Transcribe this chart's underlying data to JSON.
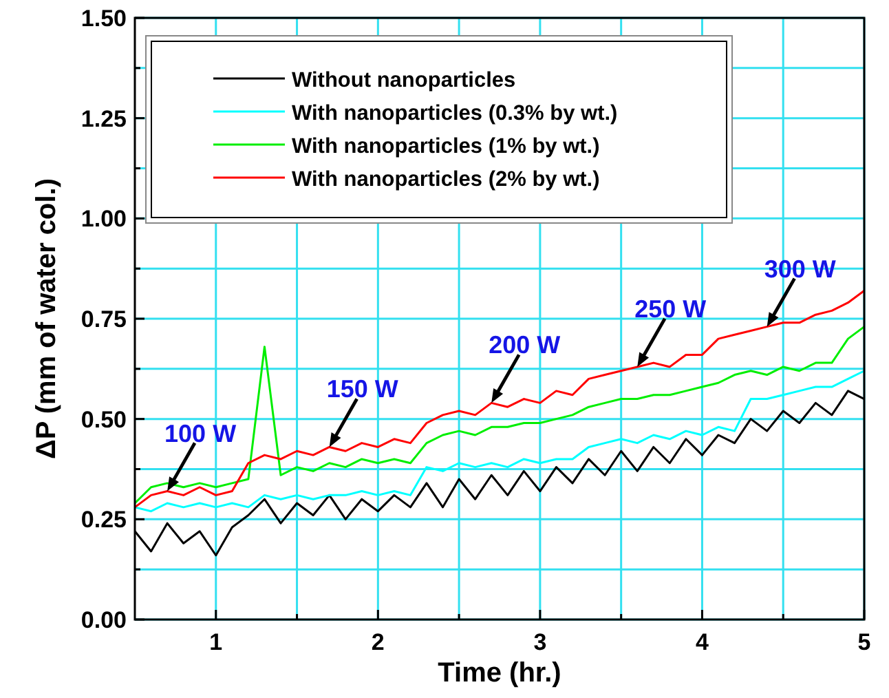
{
  "chart_data": {
    "type": "line",
    "xlabel": "Time (hr.)",
    "ylabel": "ΔP (mm of water col.)",
    "x": [
      0.5,
      0.6,
      0.7,
      0.8,
      0.9,
      1.0,
      1.1,
      1.2,
      1.3,
      1.4,
      1.5,
      1.6,
      1.7,
      1.8,
      1.9,
      2.0,
      2.1,
      2.2,
      2.3,
      2.4,
      2.5,
      2.6,
      2.7,
      2.8,
      2.9,
      3.0,
      3.1,
      3.2,
      3.3,
      3.4,
      3.5,
      3.6,
      3.7,
      3.8,
      3.9,
      4.0,
      4.1,
      4.2,
      4.3,
      4.4,
      4.5,
      4.6,
      4.7,
      4.8,
      4.9,
      5.0
    ],
    "series": [
      {
        "name": "Without nanoparticles",
        "color": "#000000",
        "values": [
          0.22,
          0.17,
          0.24,
          0.19,
          0.22,
          0.16,
          0.23,
          0.26,
          0.3,
          0.24,
          0.29,
          0.26,
          0.31,
          0.25,
          0.3,
          0.27,
          0.31,
          0.28,
          0.34,
          0.28,
          0.35,
          0.3,
          0.36,
          0.31,
          0.37,
          0.32,
          0.38,
          0.34,
          0.4,
          0.36,
          0.42,
          0.37,
          0.43,
          0.39,
          0.45,
          0.41,
          0.46,
          0.44,
          0.5,
          0.47,
          0.52,
          0.49,
          0.54,
          0.51,
          0.57,
          0.55
        ]
      },
      {
        "name": "With nanoparticles (0.3% by wt.)",
        "color": "#00ffff",
        "values": [
          0.28,
          0.27,
          0.29,
          0.28,
          0.29,
          0.28,
          0.29,
          0.28,
          0.31,
          0.3,
          0.31,
          0.3,
          0.31,
          0.31,
          0.32,
          0.31,
          0.32,
          0.31,
          0.38,
          0.37,
          0.39,
          0.38,
          0.39,
          0.38,
          0.4,
          0.39,
          0.4,
          0.4,
          0.43,
          0.44,
          0.45,
          0.44,
          0.46,
          0.45,
          0.47,
          0.46,
          0.48,
          0.47,
          0.55,
          0.55,
          0.56,
          0.57,
          0.58,
          0.58,
          0.6,
          0.62
        ]
      },
      {
        "name": "With nanoparticles (1% by wt.)",
        "color": "#00ee00",
        "values": [
          0.29,
          0.33,
          0.34,
          0.33,
          0.34,
          0.33,
          0.34,
          0.35,
          0.68,
          0.36,
          0.38,
          0.37,
          0.39,
          0.38,
          0.4,
          0.39,
          0.4,
          0.39,
          0.44,
          0.46,
          0.47,
          0.46,
          0.48,
          0.48,
          0.49,
          0.49,
          0.5,
          0.51,
          0.53,
          0.54,
          0.55,
          0.55,
          0.56,
          0.56,
          0.57,
          0.58,
          0.59,
          0.61,
          0.62,
          0.61,
          0.63,
          0.62,
          0.64,
          0.64,
          0.7,
          0.73
        ]
      },
      {
        "name": "With nanoparticles (2% by wt.)",
        "color": "#ff0000",
        "values": [
          0.28,
          0.31,
          0.32,
          0.31,
          0.33,
          0.31,
          0.32,
          0.39,
          0.41,
          0.4,
          0.42,
          0.41,
          0.43,
          0.42,
          0.44,
          0.43,
          0.45,
          0.44,
          0.49,
          0.51,
          0.52,
          0.51,
          0.54,
          0.53,
          0.55,
          0.54,
          0.57,
          0.56,
          0.6,
          0.61,
          0.62,
          0.63,
          0.64,
          0.63,
          0.66,
          0.66,
          0.7,
          0.71,
          0.72,
          0.73,
          0.74,
          0.74,
          0.76,
          0.77,
          0.79,
          0.82
        ]
      }
    ],
    "xlim": [
      0.5,
      5
    ],
    "xticks": [
      1,
      {
        "value": 1.5,
        "label": null
      },
      2,
      {
        "value": 2.5,
        "label": null
      },
      3,
      {
        "value": 3.5,
        "label": null
      },
      4,
      {
        "value": 4.5,
        "label": null
      },
      5
    ],
    "ylim": [
      0,
      1.5
    ],
    "yticks": [
      {
        "value": 0,
        "label": "0.00"
      },
      {
        "value": 0.125,
        "label": null
      },
      0.25,
      {
        "value": 0.375,
        "label": null
      },
      {
        "value": 0.5,
        "label": "0.50"
      },
      {
        "value": 0.625,
        "label": null
      },
      0.75,
      {
        "value": 0.875,
        "label": null
      },
      {
        "value": 1,
        "label": "1.00"
      },
      {
        "value": 1.125,
        "label": null
      },
      1.25,
      {
        "value": 1.375,
        "label": null
      },
      {
        "value": 1.5,
        "label": "1.50"
      }
    ],
    "grid": true,
    "legend": "top left",
    "line_style": "solid",
    "annotations": [
      {
        "text": "100 W",
        "x": 0.7,
        "y": 0.32
      },
      {
        "text": "150 W",
        "x": 1.7,
        "y": 0.43
      },
      {
        "text": "200 W",
        "x": 2.7,
        "y": 0.54
      },
      {
        "text": "250 W",
        "x": 3.6,
        "y": 0.63
      },
      {
        "text": "300 W",
        "x": 4.4,
        "y": 0.73
      }
    ]
  }
}
